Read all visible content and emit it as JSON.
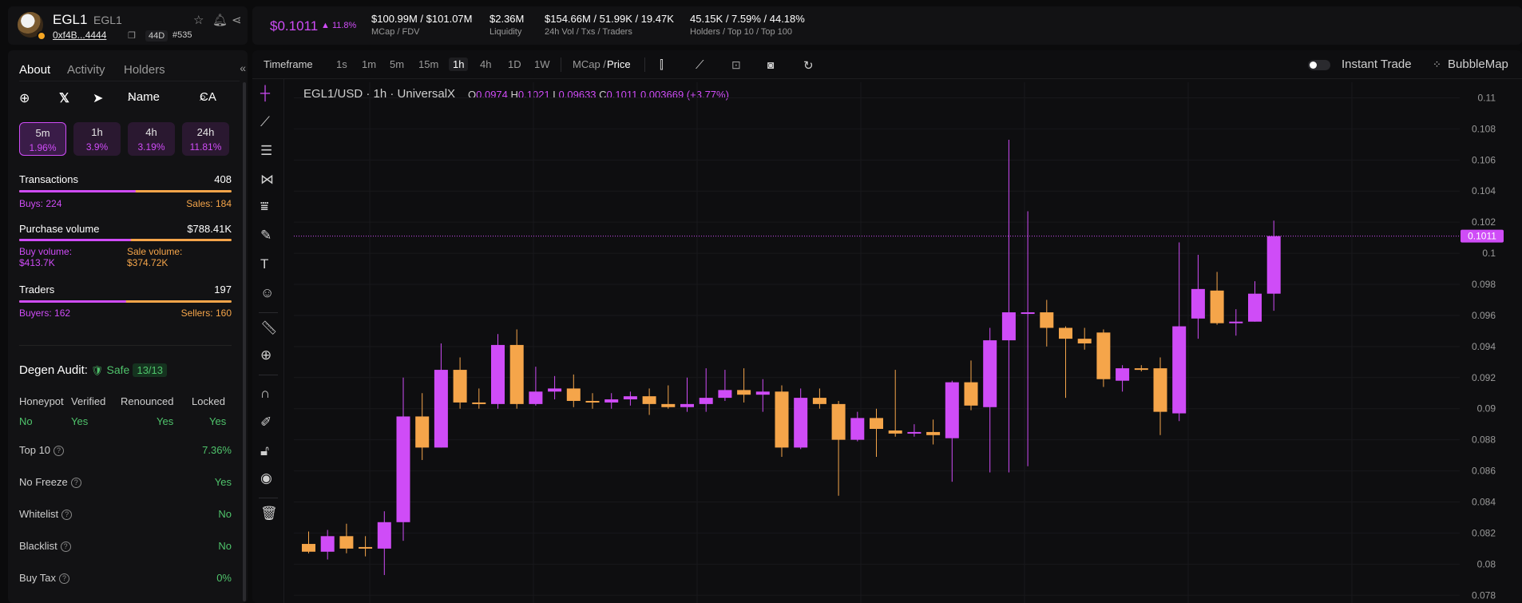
{
  "token": {
    "name": "EGL1",
    "symbol": "EGL1",
    "address": "0xf4B...4444",
    "age": "44D",
    "rank": "#535"
  },
  "header": {
    "price": "$0.1011",
    "price_change": "▲ 11.8%",
    "stats": [
      {
        "value": "$100.99M / $101.07M",
        "label": "MCap / FDV"
      },
      {
        "value": "$2.36M",
        "label": "Liquidity"
      },
      {
        "value": "$154.66M / 51.99K / 19.47K",
        "label": "24h Vol / Txs / Traders"
      },
      {
        "value": "45.15K / 7.59% / 44.18%",
        "label": "Holders / Top 10 / Top 100"
      }
    ]
  },
  "sidebar": {
    "tabs": [
      "About",
      "Activity",
      "Holders"
    ],
    "social": {
      "name_label": "Name",
      "ca_label": "CA"
    },
    "timeframes": [
      {
        "label": "5m",
        "change": "1.96%",
        "active": true
      },
      {
        "label": "1h",
        "change": "3.9%"
      },
      {
        "label": "4h",
        "change": "3.19%"
      },
      {
        "label": "24h",
        "change": "11.81%"
      }
    ],
    "transactions": {
      "label": "Transactions",
      "value": "408",
      "buys": "Buys: 224",
      "sales": "Sales: 184",
      "buy_fraction": 0.549
    },
    "volume": {
      "label": "Purchase volume",
      "value": "$788.41K",
      "buy_label": "Buy volume:",
      "buy_value": "$413.7K",
      "sale_label": "Sale volume:",
      "sale_value": "$374.72K",
      "buy_fraction": 0.525
    },
    "traders": {
      "label": "Traders",
      "value": "197",
      "buyers": "Buyers: 162",
      "sellers": "Sellers: 160",
      "buy_fraction": 0.503
    },
    "audit": {
      "title": "Degen Audit:",
      "status": "Safe",
      "score": "13/13",
      "headers": [
        "Honeypot",
        "Verified",
        "Renounced",
        "Locked"
      ],
      "values": [
        "No",
        "Yes",
        "Yes",
        "Yes"
      ],
      "checks": [
        {
          "label": "Top 10",
          "value": "7.36%"
        },
        {
          "label": "No Freeze",
          "value": "Yes"
        },
        {
          "label": "Whitelist",
          "value": "No"
        },
        {
          "label": "Blacklist",
          "value": "No"
        },
        {
          "label": "Buy Tax",
          "value": "0%"
        }
      ]
    }
  },
  "toolbar": {
    "timeframe_label": "Timeframe",
    "intervals": [
      "1s",
      "1m",
      "5m",
      "15m",
      "1h",
      "4h",
      "1D",
      "1W"
    ],
    "active_interval": "1h",
    "mcap_label": "MCap /",
    "price_label": "Price",
    "instant_trade": "Instant Trade",
    "bubblemap": "BubbleMap"
  },
  "chart": {
    "title": "EGL1/USD · 1h · UniversalX",
    "ohlc": {
      "o": "0.0974",
      "h": "0.1021",
      "l": "0.09633",
      "c": "0.1011",
      "change": "0.003669 (+3.77%)"
    }
  },
  "colors": {
    "up": "#cf4cf7",
    "down": "#f5a54a",
    "safe": "#4fc36b"
  },
  "chart_data": {
    "type": "candlestick",
    "ylim": [
      0.0775,
      0.111
    ],
    "yticks": [
      "0.11",
      "0.108",
      "0.106",
      "0.104",
      "0.102",
      "0.1",
      "0.098",
      "0.096",
      "0.094",
      "0.092",
      "0.09",
      "0.088",
      "0.086",
      "0.084",
      "0.082",
      "0.08",
      "0.078"
    ],
    "current_price": "0.1011",
    "candles": [
      {
        "o": 0.0813,
        "h": 0.0821,
        "l": 0.0807,
        "c": 0.0808
      },
      {
        "o": 0.0808,
        "h": 0.0822,
        "l": 0.0803,
        "c": 0.0818
      },
      {
        "o": 0.0818,
        "h": 0.0826,
        "l": 0.0807,
        "c": 0.081
      },
      {
        "o": 0.0811,
        "h": 0.0818,
        "l": 0.0805,
        "c": 0.081
      },
      {
        "o": 0.081,
        "h": 0.0834,
        "l": 0.0793,
        "c": 0.0827
      },
      {
        "o": 0.0827,
        "h": 0.092,
        "l": 0.0815,
        "c": 0.0895
      },
      {
        "o": 0.0895,
        "h": 0.091,
        "l": 0.0867,
        "c": 0.0875
      },
      {
        "o": 0.0875,
        "h": 0.0942,
        "l": 0.0875,
        "c": 0.0925
      },
      {
        "o": 0.0925,
        "h": 0.0933,
        "l": 0.09,
        "c": 0.0904
      },
      {
        "o": 0.0904,
        "h": 0.0913,
        "l": 0.09,
        "c": 0.0903
      },
      {
        "o": 0.0903,
        "h": 0.0948,
        "l": 0.09,
        "c": 0.0941
      },
      {
        "o": 0.0941,
        "h": 0.0951,
        "l": 0.09,
        "c": 0.0903
      },
      {
        "o": 0.0903,
        "h": 0.0927,
        "l": 0.0902,
        "c": 0.0911
      },
      {
        "o": 0.0911,
        "h": 0.0921,
        "l": 0.0906,
        "c": 0.0913
      },
      {
        "o": 0.0913,
        "h": 0.0922,
        "l": 0.0901,
        "c": 0.0905
      },
      {
        "o": 0.0905,
        "h": 0.091,
        "l": 0.09,
        "c": 0.0904
      },
      {
        "o": 0.0904,
        "h": 0.091,
        "l": 0.09,
        "c": 0.0906
      },
      {
        "o": 0.0906,
        "h": 0.0911,
        "l": 0.0902,
        "c": 0.0908
      },
      {
        "o": 0.0908,
        "h": 0.0913,
        "l": 0.0896,
        "c": 0.0903
      },
      {
        "o": 0.0903,
        "h": 0.0915,
        "l": 0.09,
        "c": 0.0901
      },
      {
        "o": 0.0901,
        "h": 0.092,
        "l": 0.0898,
        "c": 0.0903
      },
      {
        "o": 0.0903,
        "h": 0.0926,
        "l": 0.0898,
        "c": 0.0907
      },
      {
        "o": 0.0907,
        "h": 0.0925,
        "l": 0.0905,
        "c": 0.0912
      },
      {
        "o": 0.0912,
        "h": 0.0926,
        "l": 0.0904,
        "c": 0.0909
      },
      {
        "o": 0.0909,
        "h": 0.0919,
        "l": 0.0898,
        "c": 0.0911
      },
      {
        "o": 0.0911,
        "h": 0.0915,
        "l": 0.0869,
        "c": 0.0875
      },
      {
        "o": 0.0875,
        "h": 0.0913,
        "l": 0.0874,
        "c": 0.0907
      },
      {
        "o": 0.0907,
        "h": 0.0913,
        "l": 0.09,
        "c": 0.0903
      },
      {
        "o": 0.0903,
        "h": 0.0905,
        "l": 0.0844,
        "c": 0.088
      },
      {
        "o": 0.088,
        "h": 0.0898,
        "l": 0.0879,
        "c": 0.0894
      },
      {
        "o": 0.0894,
        "h": 0.09,
        "l": 0.0869,
        "c": 0.0887
      },
      {
        "o": 0.0886,
        "h": 0.0925,
        "l": 0.0882,
        "c": 0.0884
      },
      {
        "o": 0.0884,
        "h": 0.089,
        "l": 0.0882,
        "c": 0.0885
      },
      {
        "o": 0.0885,
        "h": 0.0893,
        "l": 0.0877,
        "c": 0.0883
      },
      {
        "o": 0.0881,
        "h": 0.0918,
        "l": 0.0853,
        "c": 0.0917
      },
      {
        "o": 0.0917,
        "h": 0.0931,
        "l": 0.0899,
        "c": 0.0902
      },
      {
        "o": 0.0901,
        "h": 0.0952,
        "l": 0.0859,
        "c": 0.0944
      },
      {
        "o": 0.0944,
        "h": 0.1073,
        "l": 0.0859,
        "c": 0.0962
      },
      {
        "o": 0.0962,
        "h": 0.1027,
        "l": 0.0863,
        "c": 0.0962
      },
      {
        "o": 0.0962,
        "h": 0.097,
        "l": 0.094,
        "c": 0.0952
      },
      {
        "o": 0.0952,
        "h": 0.0953,
        "l": 0.0907,
        "c": 0.0945
      },
      {
        "o": 0.0945,
        "h": 0.0952,
        "l": 0.0938,
        "c": 0.0942
      },
      {
        "o": 0.0949,
        "h": 0.0951,
        "l": 0.0914,
        "c": 0.0919
      },
      {
        "o": 0.0918,
        "h": 0.0928,
        "l": 0.0911,
        "c": 0.0926
      },
      {
        "o": 0.0926,
        "h": 0.0928,
        "l": 0.0924,
        "c": 0.0925
      },
      {
        "o": 0.0926,
        "h": 0.0933,
        "l": 0.0883,
        "c": 0.0898
      },
      {
        "o": 0.0897,
        "h": 0.1007,
        "l": 0.0892,
        "c": 0.0953
      },
      {
        "o": 0.0958,
        "h": 0.0999,
        "l": 0.0945,
        "c": 0.0977
      },
      {
        "o": 0.0976,
        "h": 0.0988,
        "l": 0.0954,
        "c": 0.0955
      },
      {
        "o": 0.0956,
        "h": 0.0964,
        "l": 0.0947,
        "c": 0.0956
      },
      {
        "o": 0.0956,
        "h": 0.0982,
        "l": 0.0956,
        "c": 0.0974
      },
      {
        "o": 0.0974,
        "h": 0.1021,
        "l": 0.0963,
        "c": 0.1011
      }
    ]
  }
}
